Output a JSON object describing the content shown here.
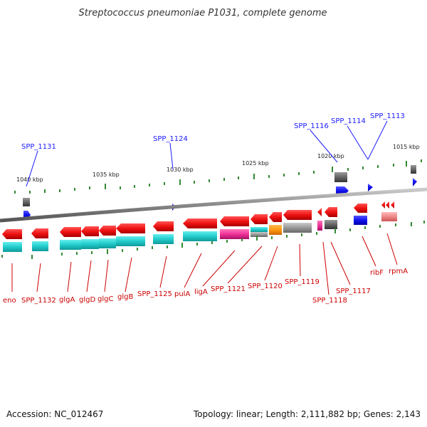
{
  "title": "Streptococcus pneumoniae P1031, complete genome",
  "footer": {
    "accession": "Accession: NC_012467",
    "topology": "Topology: linear; Length: 2,111,882 bp; Genes: 2,143"
  },
  "scale_labels": [
    "1040 kbp",
    "1035 kbp",
    "1030 kbp",
    "1025 kbp",
    "1020 kbp",
    "1015 kbp"
  ],
  "upper_labels": [
    "SPP_1131",
    "SPP_1124",
    "SPP_1116",
    "SPP_1114",
    "SPP_1113"
  ],
  "lower_labels": [
    "eno",
    "SPP_1132",
    "glgA",
    "glgD",
    "glgC",
    "glgB",
    "SPP_1125",
    "pulA",
    "ligA",
    "SPP_1121",
    "SPP_1120",
    "SPP_1119",
    "SPP_1118",
    "SPP_1117",
    "ribF",
    "rpmA"
  ],
  "colors": {
    "gene_arrow": "#ee1111",
    "cog_cyan": "#22cccc",
    "cog_magenta": "#ee3399",
    "cog_orange": "#ff9911",
    "cog_gray": "#999999",
    "cog_blue": "#1111ee",
    "cog_pink": "#ee8888",
    "rna": "#1133ee",
    "backbone": "#888888",
    "tick": "#338833",
    "label_blue": "#1a1aff",
    "label_red": "#cc0000"
  }
}
